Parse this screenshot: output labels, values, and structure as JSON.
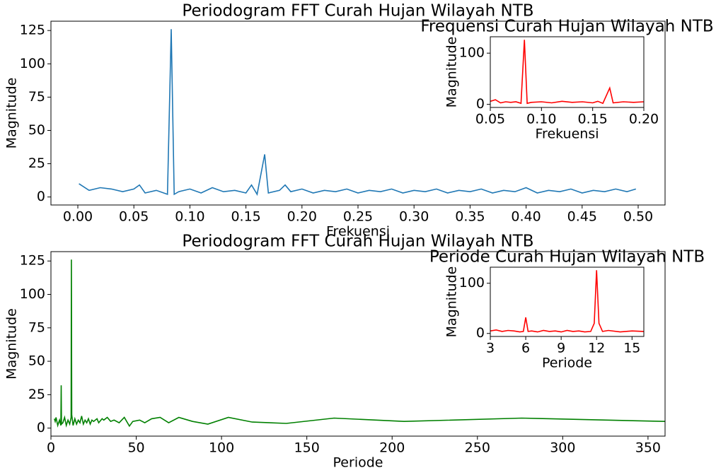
{
  "chart_data": [
    {
      "type": "line",
      "title": "Periodogram FFT Curah Hujan Wilayah NTB",
      "x_label": "Frekuensi",
      "y_label": "Magnitude",
      "x": [
        0.001,
        0.01,
        0.02,
        0.03,
        0.04,
        0.05,
        0.055,
        0.06,
        0.07,
        0.08,
        0.0833,
        0.086,
        0.09,
        0.1,
        0.11,
        0.12,
        0.13,
        0.14,
        0.15,
        0.155,
        0.16,
        0.1667,
        0.17,
        0.18,
        0.185,
        0.19,
        0.2,
        0.21,
        0.22,
        0.23,
        0.24,
        0.25,
        0.26,
        0.27,
        0.28,
        0.29,
        0.3,
        0.31,
        0.32,
        0.33,
        0.34,
        0.35,
        0.36,
        0.37,
        0.38,
        0.39,
        0.4,
        0.41,
        0.42,
        0.43,
        0.44,
        0.45,
        0.46,
        0.47,
        0.48,
        0.49,
        0.498
      ],
      "values": [
        10,
        5,
        7,
        6,
        4,
        6,
        9,
        3,
        5,
        2,
        126,
        2,
        4,
        6,
        3,
        7,
        4,
        5,
        3,
        9,
        2,
        32,
        3,
        5,
        9,
        4,
        6,
        3,
        5,
        4,
        6,
        3,
        5,
        4,
        6,
        3,
        5,
        4,
        6,
        3,
        5,
        4,
        6,
        3,
        5,
        4,
        7,
        3,
        5,
        4,
        6,
        3,
        5,
        4,
        6,
        4,
        6
      ],
      "color": "#1f77b4",
      "xlim": [
        -0.024,
        0.524
      ],
      "ylim": [
        -6,
        132
      ],
      "xticks": [
        {
          "value": 0,
          "label": "0.00"
        },
        0.05,
        {
          "value": 0.1,
          "label": "0.10"
        },
        0.15,
        {
          "value": 0.2,
          "label": "0.20"
        },
        0.25,
        {
          "value": 0.3,
          "label": "0.30"
        },
        0.35,
        {
          "value": 0.4,
          "label": "0.40"
        },
        0.45,
        {
          "value": 0.5,
          "label": "0.50"
        }
      ],
      "yticks": [
        0,
        25,
        50,
        75,
        100,
        125
      ]
    },
    {
      "type": "line",
      "title": "Frequensi Curah Hujan Wilayah NTB",
      "x_label": "Frekuensi",
      "y_label": "Magnitude",
      "x": [
        0.05,
        0.055,
        0.06,
        0.065,
        0.07,
        0.075,
        0.08,
        0.0833,
        0.086,
        0.09,
        0.1,
        0.11,
        0.12,
        0.13,
        0.14,
        0.15,
        0.155,
        0.16,
        0.1667,
        0.17,
        0.18,
        0.19,
        0.2
      ],
      "values": [
        6,
        9,
        3,
        5,
        4,
        5,
        2,
        126,
        2,
        4,
        5,
        3,
        6,
        4,
        5,
        3,
        6,
        2,
        32,
        3,
        5,
        4,
        5
      ],
      "color": "#ff0000",
      "xlim": [
        0.05,
        0.2
      ],
      "ylim": [
        -6,
        132
      ],
      "xticks": [
        0.05,
        {
          "value": 0.1,
          "label": "0.10"
        },
        0.15,
        {
          "value": 0.2,
          "label": "0.20"
        }
      ],
      "yticks": [
        0,
        100
      ]
    },
    {
      "type": "line",
      "title": "Periodogram FFT Curah Hujan Wilayah NTB",
      "x_label": "Periode",
      "y_label": "Magnitude",
      "x": [
        360,
        276,
        207,
        166,
        138,
        118,
        104,
        92,
        83,
        75,
        69,
        64,
        59,
        55,
        52,
        48,
        46,
        43,
        40,
        37,
        35,
        33,
        31,
        30,
        28,
        27,
        25,
        24,
        23,
        22,
        21,
        20,
        19,
        18,
        17,
        16,
        15,
        14,
        13,
        12.2,
        12,
        11.8,
        11,
        10,
        9,
        8,
        7,
        6.2,
        6,
        5.8,
        5,
        4,
        3,
        2.5,
        2
      ],
      "values": [
        5,
        7.5,
        5,
        7.5,
        3.5,
        4.5,
        8,
        3,
        5,
        8,
        4,
        8,
        7,
        4,
        6,
        5,
        1.5,
        8,
        4,
        6,
        5,
        8,
        6,
        7,
        4,
        7,
        5,
        6,
        3,
        7,
        4,
        6,
        3,
        9,
        4,
        6,
        3,
        7,
        2,
        10,
        126,
        8,
        3,
        6,
        2,
        8,
        4,
        3,
        32,
        2,
        6,
        2,
        8,
        5,
        7
      ],
      "color": "#008000",
      "xlim": [
        0,
        360
      ],
      "ylim": [
        -6,
        132
      ],
      "xticks": [
        0,
        50,
        100,
        150,
        200,
        250,
        300,
        350
      ],
      "yticks": [
        0,
        25,
        50,
        75,
        100,
        125
      ]
    },
    {
      "type": "line",
      "title": "Periode Curah Hujan Wilayah NTB",
      "x_label": "Periode",
      "y_label": "Magnitude",
      "x": [
        3,
        3.5,
        4,
        4.5,
        5,
        5.5,
        5.8,
        6,
        6.2,
        6.5,
        7,
        7.5,
        8,
        8.5,
        9,
        9.5,
        10,
        10.5,
        11,
        11.5,
        11.8,
        12,
        12.2,
        12.5,
        13,
        14,
        15,
        16
      ],
      "values": [
        5,
        7,
        4,
        6,
        5,
        3,
        4,
        32,
        4,
        5,
        3,
        6,
        4,
        5,
        3,
        6,
        4,
        5,
        3,
        4,
        20,
        126,
        20,
        4,
        6,
        3,
        5,
        4
      ],
      "color": "#ff0000",
      "xlim": [
        3,
        16
      ],
      "ylim": [
        -6,
        132
      ],
      "xticks": [
        3,
        6,
        9,
        12,
        15
      ],
      "yticks": [
        0,
        100
      ]
    }
  ]
}
